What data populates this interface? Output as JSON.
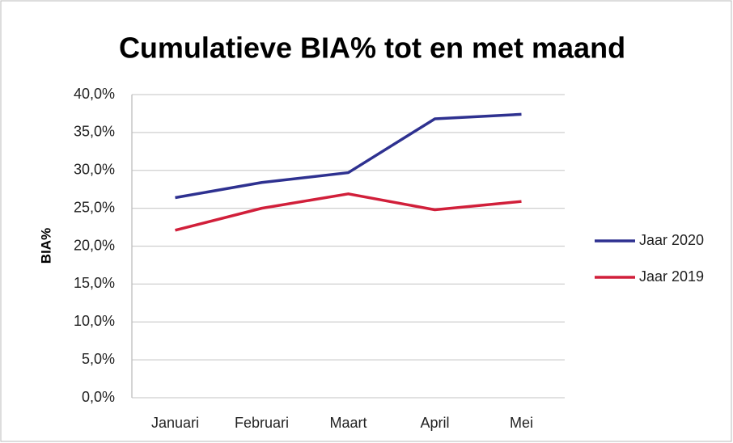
{
  "chart_data": {
    "type": "line",
    "title": "Cumulatieve BIA% tot en met maand",
    "y_label": "BIA%",
    "categories": [
      "Januari",
      "Februari",
      "Maart",
      "April",
      "Mei"
    ],
    "series": [
      {
        "name": "Jaar 2020",
        "color": "#2e3190",
        "values": [
          26.4,
          28.4,
          29.7,
          36.8,
          37.4
        ]
      },
      {
        "name": "Jaar 2019",
        "color": "#d11f3a",
        "values": [
          22.1,
          25.0,
          26.9,
          24.8,
          25.9
        ]
      }
    ],
    "ylim": [
      0,
      40
    ],
    "yticks": [
      {
        "value": 0,
        "label": "0,0%"
      },
      {
        "value": 5,
        "label": "5,0%"
      },
      {
        "value": 10,
        "label": "10,0%"
      },
      {
        "value": 15,
        "label": "15,0%"
      },
      {
        "value": 20,
        "label": "20,0%"
      },
      {
        "value": 25,
        "label": "25,0%"
      },
      {
        "value": 30,
        "label": "30,0%"
      },
      {
        "value": 35,
        "label": "35,0%"
      },
      {
        "value": 40,
        "label": "40,0%"
      }
    ],
    "grid": true,
    "legend": "right"
  }
}
